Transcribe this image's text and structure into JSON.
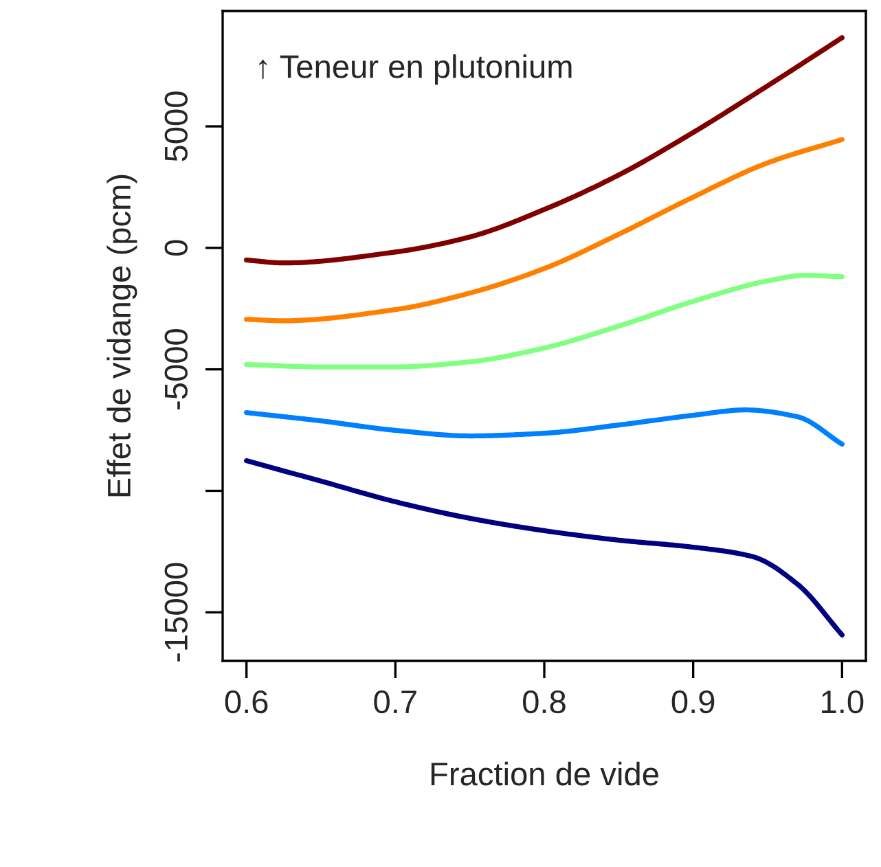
{
  "chart_data": {
    "type": "line",
    "xlabel": "Fraction de vide",
    "ylabel": "Effet de vidange (pcm)",
    "annotations": [
      "↑ Teneur en plutonium"
    ],
    "series": [
      {
        "color": "#800000",
        "x": [
          0.6,
          0.625,
          0.7,
          0.75,
          0.8,
          0.85,
          0.9,
          0.95,
          1.0
        ],
        "values": [
          -500,
          -620,
          -170,
          450,
          1580,
          3000,
          4750,
          6670,
          8650
        ]
      },
      {
        "color": "#ff8000",
        "x": [
          0.6,
          0.625,
          0.7,
          0.75,
          0.8,
          0.85,
          0.9,
          0.95,
          1.0
        ],
        "values": [
          -2940,
          -3000,
          -2540,
          -1860,
          -850,
          560,
          2090,
          3500,
          4460
        ]
      },
      {
        "color": "#80ff80",
        "x": [
          0.6,
          0.65,
          0.7,
          0.75,
          0.8,
          0.85,
          0.9,
          0.95,
          0.975,
          1.0
        ],
        "values": [
          -4800,
          -4900,
          -4900,
          -4690,
          -4120,
          -3220,
          -2200,
          -1360,
          -1130,
          -1190
        ]
      },
      {
        "color": "#0080ff",
        "x": [
          0.6,
          0.65,
          0.7,
          0.75,
          0.8,
          0.85,
          0.9,
          0.935,
          0.97,
          1.0
        ],
        "values": [
          -6780,
          -7120,
          -7510,
          -7740,
          -7630,
          -7290,
          -6890,
          -6670,
          -6950,
          -8080
        ]
      },
      {
        "color": "#000080",
        "x": [
          0.6,
          0.65,
          0.7,
          0.75,
          0.8,
          0.85,
          0.9,
          0.94,
          0.97,
          1.0
        ],
        "values": [
          -8760,
          -9600,
          -10450,
          -11130,
          -11640,
          -12030,
          -12320,
          -12710,
          -13840,
          -15930
        ]
      }
    ],
    "xlim": [
      0.584,
      1.016
    ],
    "ylim": [
      -17000,
      9750
    ],
    "xticks": [
      {
        "value": 0.6,
        "label": "0.6"
      },
      {
        "value": 0.7,
        "label": "0.7"
      },
      {
        "value": 0.8,
        "label": "0.8"
      },
      {
        "value": 0.9,
        "label": "0.9"
      },
      {
        "value": 1.0,
        "label": "1.0"
      }
    ],
    "yticks": [
      5000,
      0,
      -5000,
      {
        "value": -10000,
        "label": null
      },
      -15000
    ],
    "grid": false,
    "legend": false,
    "marker": "none",
    "line_style": "solid"
  }
}
